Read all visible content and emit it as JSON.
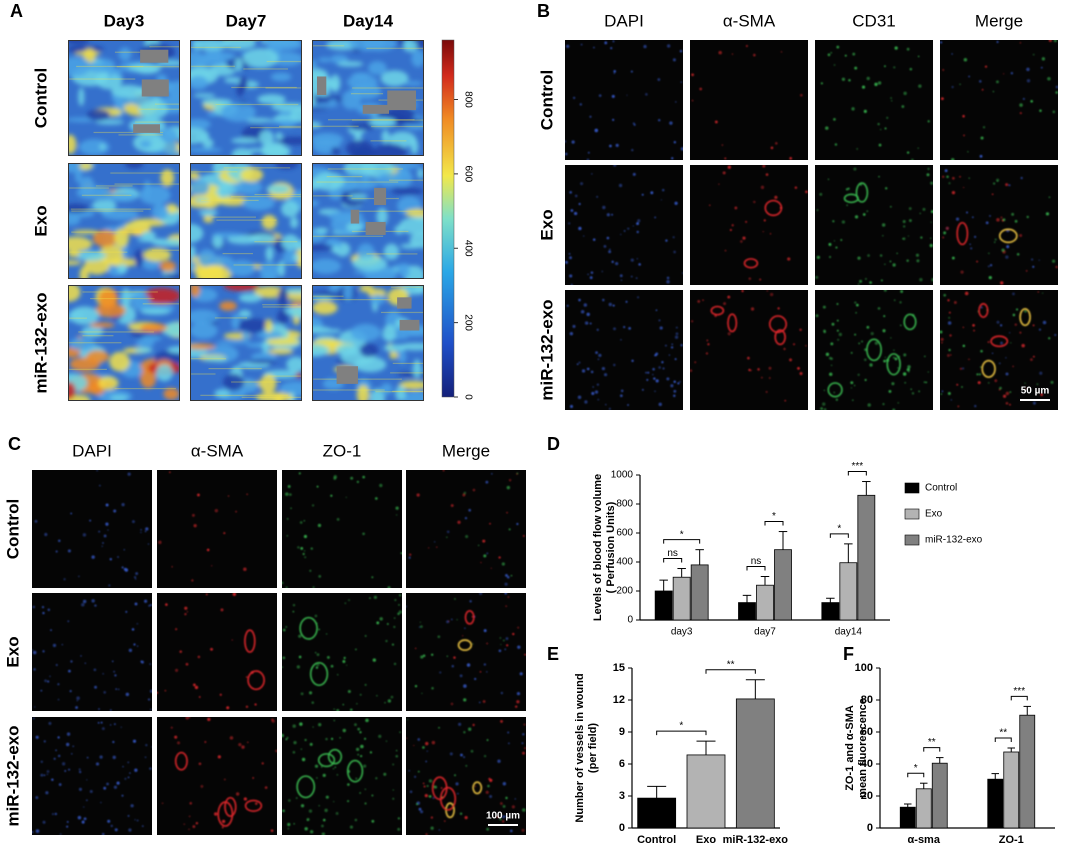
{
  "panels": {
    "A": {
      "label": "A",
      "columns": [
        "Day3",
        "Day7",
        "Day14"
      ],
      "rows": [
        "Control",
        "Exo",
        "miR-132-exo"
      ],
      "colorbar": {
        "range": [
          0,
          960
        ],
        "ticks": [
          0,
          200,
          400,
          600,
          800
        ]
      }
    },
    "B": {
      "label": "B",
      "columns": [
        "DAPI",
        "α-SMA",
        "CD31",
        "Merge"
      ],
      "rows": [
        "Control",
        "Exo",
        "miR-132-exo"
      ],
      "scale_bar": "50 µm"
    },
    "C": {
      "label": "C",
      "columns": [
        "DAPI",
        "α-SMA",
        "ZO-1",
        "Merge"
      ],
      "rows": [
        "Control",
        "Exo",
        "miR-132-exo"
      ],
      "scale_bar": "100 µm"
    }
  },
  "chart_data": [
    {
      "panel_label": "D",
      "type": "bar",
      "ylabel": [
        "Levels of blood flow volume",
        "( Perfusion Units)"
      ],
      "categories": [
        "day3",
        "day7",
        "day14"
      ],
      "series": [
        {
          "name": "Control",
          "color": "#000000",
          "values": [
            200,
            120,
            120
          ],
          "errors": [
            75,
            50,
            30
          ]
        },
        {
          "name": "Exo",
          "color": "#b3b3b3",
          "values": [
            295,
            240,
            395
          ],
          "errors": [
            60,
            60,
            130
          ]
        },
        {
          "name": "miR-132-exo",
          "color": "#808080",
          "values": [
            380,
            485,
            860
          ],
          "errors": [
            105,
            125,
            95
          ]
        }
      ],
      "ylim": [
        0,
        1000
      ],
      "yticks": [
        0,
        200,
        400,
        600,
        800,
        1000
      ],
      "legend": "right",
      "significance": [
        {
          "category": "day3",
          "between": [
            0,
            1
          ],
          "label": "ns"
        },
        {
          "category": "day3",
          "between": [
            0,
            2
          ],
          "label": "*"
        },
        {
          "category": "day7",
          "between": [
            0,
            1
          ],
          "label": "ns"
        },
        {
          "category": "day7",
          "between": [
            1,
            2
          ],
          "label": "*"
        },
        {
          "category": "day14",
          "between": [
            0,
            1
          ],
          "label": "*"
        },
        {
          "category": "day14",
          "between": [
            1,
            2
          ],
          "label": "***"
        }
      ]
    },
    {
      "panel_label": "E",
      "type": "bar",
      "ylabel": [
        "Number of vessels in wound",
        "(per field)"
      ],
      "categories": [
        "Control",
        "Exo",
        "miR-132-exo"
      ],
      "values": [
        2.8,
        6.85,
        12.1
      ],
      "errors": [
        1.1,
        1.3,
        1.8
      ],
      "colors": [
        "#000000",
        "#b3b3b3",
        "#808080"
      ],
      "ylim": [
        0,
        15
      ],
      "yticks": [
        0,
        3,
        6,
        9,
        12,
        15
      ],
      "significance": [
        {
          "between": [
            0,
            1
          ],
          "label": "*"
        },
        {
          "between": [
            1,
            2
          ],
          "label": "**"
        }
      ]
    },
    {
      "panel_label": "F",
      "type": "bar",
      "ylabel": [
        "ZO-1 and α-SMA",
        "mean fluorescence"
      ],
      "categories": [
        "α-sma",
        "ZO-1"
      ],
      "series": [
        {
          "color": "#000000",
          "values": [
            13,
            30.5
          ],
          "errors": [
            2,
            3.5
          ]
        },
        {
          "color": "#b3b3b3",
          "values": [
            24.5,
            47.5
          ],
          "errors": [
            3.5,
            2.5
          ]
        },
        {
          "color": "#808080",
          "values": [
            40.5,
            70.5
          ],
          "errors": [
            3.5,
            5.5
          ]
        }
      ],
      "ylim": [
        0,
        100
      ],
      "yticks": [
        0,
        20,
        40,
        60,
        80,
        100
      ],
      "significance": [
        {
          "category": "α-sma",
          "between": [
            0,
            1
          ],
          "label": "*"
        },
        {
          "category": "α-sma",
          "between": [
            1,
            2
          ],
          "label": "**"
        },
        {
          "category": "ZO-1",
          "between": [
            0,
            1
          ],
          "label": "**"
        },
        {
          "category": "ZO-1",
          "between": [
            1,
            2
          ],
          "label": "***"
        }
      ]
    }
  ]
}
